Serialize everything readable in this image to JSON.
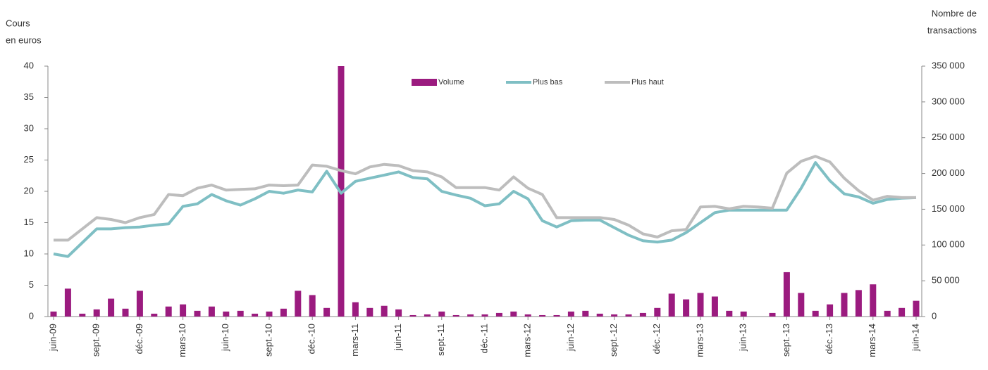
{
  "chart_data": {
    "type": "bar-line",
    "ylabel": [
      "Cours",
      "en euros"
    ],
    "y2label": [
      "Nombre de",
      "transactions"
    ],
    "categories": [
      "juin-09",
      null,
      null,
      "sept.-09",
      null,
      null,
      "déc.-09",
      null,
      null,
      "mars-10",
      null,
      null,
      "juin-10",
      null,
      null,
      "sept.-10",
      null,
      null,
      "déc.-10",
      null,
      null,
      "mars-11",
      null,
      null,
      "juin-11",
      null,
      null,
      "sept.-11",
      null,
      null,
      "déc.-11",
      null,
      null,
      "mars-12",
      null,
      null,
      "juin-12",
      null,
      null,
      "sept.-12",
      null,
      null,
      "déc.-12",
      null,
      null,
      "mars-13",
      null,
      null,
      "juin-13",
      null,
      null,
      "sept.-13",
      null,
      null,
      "déc.-13",
      null,
      null,
      "mars-14",
      null,
      null,
      "juin-14"
    ],
    "series": [
      {
        "name": "Volume",
        "kind": "bar",
        "axis": "y2",
        "color": "#9b1b7f",
        "values": [
          7000,
          39000,
          4000,
          10000,
          25000,
          11000,
          36000,
          4000,
          14000,
          17000,
          8000,
          14000,
          7000,
          8000,
          4000,
          7000,
          11000,
          36000,
          30000,
          12000,
          350000,
          20000,
          12000,
          15000,
          10000,
          2000,
          3000,
          7000,
          2000,
          3000,
          3000,
          5000,
          7000,
          3000,
          2000,
          2000,
          7000,
          8000,
          4000,
          3000,
          3000,
          5000,
          12000,
          32000,
          24000,
          33000,
          28000,
          8000,
          7000,
          0,
          5000,
          62000,
          33000,
          8000,
          17000,
          33000,
          37000,
          45000,
          8000,
          12000,
          22000
        ]
      },
      {
        "name": "Plus bas",
        "kind": "line",
        "color": "#7fbfc4",
        "values": [
          10,
          9.6,
          11.8,
          14,
          14,
          14.2,
          14.3,
          14.6,
          14.8,
          17.6,
          18,
          19.5,
          18.5,
          17.8,
          18.8,
          20,
          19.7,
          20.2,
          19.9,
          23.2,
          19.7,
          21.6,
          22.1,
          22.6,
          23.1,
          22.2,
          22,
          20,
          19.4,
          18.9,
          17.7,
          18,
          20,
          18.8,
          15.3,
          14.3,
          15.3,
          15.4,
          15.4,
          14.2,
          13,
          12.1,
          11.9,
          12.2,
          13.4,
          15,
          16.6,
          17,
          17,
          17,
          17,
          17,
          20.5,
          24.6,
          21.7,
          19.6,
          19.1,
          18.1,
          18.7,
          18.9,
          19
        ]
      },
      {
        "name": "Plus haut",
        "kind": "line",
        "color": "#bdbdbd",
        "values": [
          12.2,
          12.2,
          14,
          15.8,
          15.5,
          15,
          15.8,
          16.3,
          19.5,
          19.3,
          20.5,
          21,
          20.2,
          20.3,
          20.4,
          21,
          20.9,
          21,
          24.2,
          24,
          23.3,
          22.8,
          23.9,
          24.3,
          24.1,
          23.3,
          23.1,
          22.3,
          20.6,
          20.6,
          20.6,
          20.2,
          22.3,
          20.5,
          19.5,
          15.8,
          15.8,
          15.8,
          15.8,
          15.5,
          14.6,
          13.2,
          12.7,
          13.7,
          13.9,
          17.5,
          17.6,
          17.2,
          17.6,
          17.5,
          17.3,
          22.9,
          24.8,
          25.6,
          24.7,
          22.1,
          20.1,
          18.6,
          19.2,
          19,
          19
        ]
      }
    ],
    "ylim": [
      0,
      40
    ],
    "yticks": [
      0,
      5,
      10,
      15,
      20,
      25,
      30,
      35,
      40
    ],
    "y2lim": [
      0,
      350000
    ],
    "y2ticks": [
      0,
      {
        "value": 50000,
        "label": "50 000"
      },
      {
        "value": 100000,
        "label": "100 000"
      },
      {
        "value": 150000,
        "label": "150 000"
      },
      {
        "value": 200000,
        "label": "200 000"
      },
      {
        "value": 250000,
        "label": "250 000"
      },
      {
        "value": 300000,
        "label": "300 000"
      },
      {
        "value": 350000,
        "label": "350 000"
      }
    ]
  }
}
